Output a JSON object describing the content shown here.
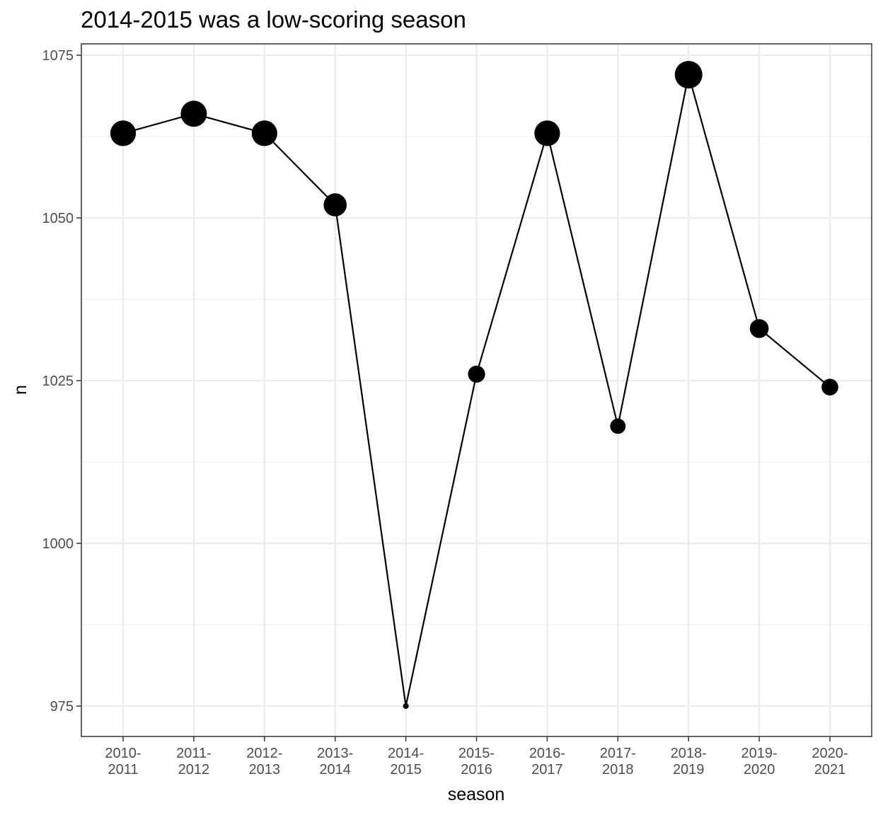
{
  "chart_data": {
    "type": "line",
    "title": "2014-2015 was a low-scoring season",
    "xlabel": "season",
    "ylabel": "n",
    "categories": [
      "2010-2011",
      "2011-2012",
      "2012-2013",
      "2013-2014",
      "2014-2015",
      "2015-2016",
      "2016-2017",
      "2017-2018",
      "2018-2019",
      "2019-2020",
      "2020-2021"
    ],
    "tick_labels": [
      [
        "2010-",
        "2011"
      ],
      [
        "2011-",
        "2012"
      ],
      [
        "2012-",
        "2013"
      ],
      [
        "2013-",
        "2014"
      ],
      [
        "2014-",
        "2015"
      ],
      [
        "2015-",
        "2016"
      ],
      [
        "2016-",
        "2017"
      ],
      [
        "2017-",
        "2018"
      ],
      [
        "2018-",
        "2019"
      ],
      [
        "2019-",
        "2020"
      ],
      [
        "2020-",
        "2021"
      ]
    ],
    "values": [
      1063,
      1066,
      1063,
      1052,
      975,
      1026,
      1063,
      1018,
      1072,
      1033,
      1024
    ],
    "point_size_encodes": "n",
    "ylim": [
      970.5,
      1076.5
    ],
    "y_ticks": [
      975,
      1000,
      1025,
      1050,
      1075
    ],
    "grid": true,
    "theme": "bw",
    "colors": {
      "line": "#000000",
      "point": "#000000",
      "grid": "#ebebeb",
      "panel_border": "#333333",
      "tick_label": "#4d4d4d"
    }
  }
}
